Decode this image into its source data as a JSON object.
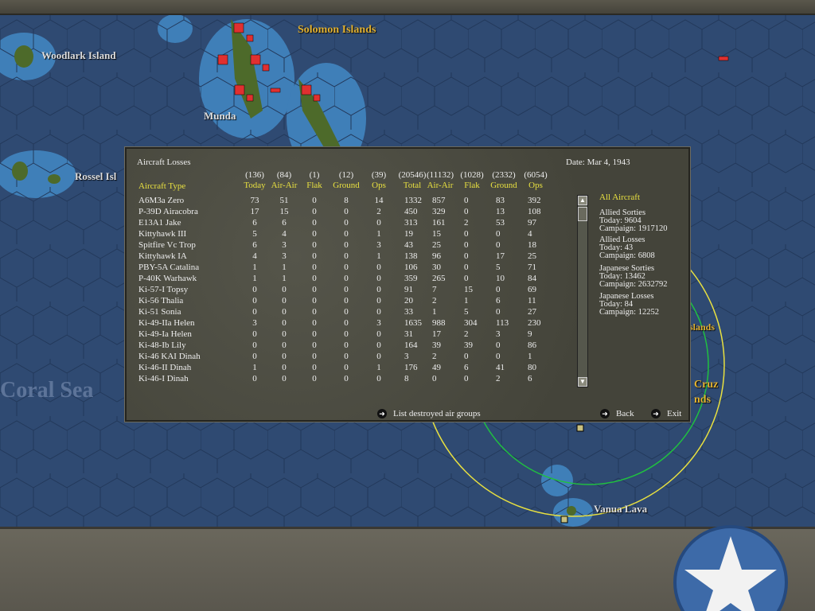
{
  "map": {
    "labels": {
      "woodlark": "Woodlark Island",
      "solomon": "Solomon Islands",
      "munda": "Munda",
      "rossel": "Rossel Isl",
      "coral": "Coral Sea",
      "vanua": "Vanua Lava",
      "cruz": "Cruz",
      "cruz2": "nds",
      "islands": "slands"
    },
    "colors": {
      "ocean": "#2f4a72",
      "shallow": "#3f7fb8",
      "japanese": "#e03030",
      "allied_range": "#e8e040",
      "range2": "#20c040"
    }
  },
  "dialog": {
    "title": "Aircraft Losses",
    "date": "Date: Mar 4, 1943",
    "type_header": "Aircraft Type",
    "columns": [
      {
        "total": "(136)",
        "label": "Today"
      },
      {
        "total": "(84)",
        "label": "Air-Air"
      },
      {
        "total": "(1)",
        "label": "Flak"
      },
      {
        "total": "(12)",
        "label": "Ground"
      },
      {
        "total": "(39)",
        "label": "Ops"
      },
      {
        "total": "(20546)",
        "label": "Total"
      },
      {
        "total": "(11132)",
        "label": "Air-Air"
      },
      {
        "total": "(1028)",
        "label": "Flak"
      },
      {
        "total": "(2332)",
        "label": "Ground"
      },
      {
        "total": "(6054)",
        "label": "Ops"
      }
    ],
    "rows": [
      [
        "A6M3a Zero",
        73,
        51,
        0,
        8,
        14,
        1332,
        857,
        0,
        83,
        392
      ],
      [
        "P-39D Airacobra",
        17,
        15,
        0,
        0,
        2,
        450,
        329,
        0,
        13,
        108
      ],
      [
        "E13A1 Jake",
        6,
        6,
        0,
        0,
        0,
        313,
        161,
        2,
        53,
        97
      ],
      [
        "Kittyhawk III",
        5,
        4,
        0,
        0,
        1,
        19,
        15,
        0,
        0,
        4
      ],
      [
        "Spitfire Vc Trop",
        6,
        3,
        0,
        0,
        3,
        43,
        25,
        0,
        0,
        18
      ],
      [
        "Kittyhawk IA",
        4,
        3,
        0,
        0,
        1,
        138,
        96,
        0,
        17,
        25
      ],
      [
        "PBY-5A Catalina",
        1,
        1,
        0,
        0,
        0,
        106,
        30,
        0,
        5,
        71
      ],
      [
        "P-40K Warhawk",
        1,
        1,
        0,
        0,
        0,
        359,
        265,
        0,
        10,
        84
      ],
      [
        "Ki-57-I Topsy",
        0,
        0,
        0,
        0,
        0,
        91,
        7,
        15,
        0,
        69
      ],
      [
        "Ki-56 Thalia",
        0,
        0,
        0,
        0,
        0,
        20,
        2,
        1,
        6,
        11
      ],
      [
        "Ki-51 Sonia",
        0,
        0,
        0,
        0,
        0,
        33,
        1,
        5,
        0,
        27
      ],
      [
        "Ki-49-IIa Helen",
        3,
        0,
        0,
        0,
        3,
        1635,
        988,
        304,
        113,
        230
      ],
      [
        "Ki-49-Ia Helen",
        0,
        0,
        0,
        0,
        0,
        31,
        17,
        2,
        3,
        9
      ],
      [
        "Ki-48-Ib Lily",
        0,
        0,
        0,
        0,
        0,
        164,
        39,
        39,
        0,
        86
      ],
      [
        "Ki-46 KAI Dinah",
        0,
        0,
        0,
        0,
        0,
        3,
        2,
        0,
        0,
        1
      ],
      [
        "Ki-46-II Dinah",
        1,
        0,
        0,
        0,
        1,
        176,
        49,
        6,
        41,
        80
      ],
      [
        "Ki-46-I Dinah",
        0,
        0,
        0,
        0,
        0,
        8,
        0,
        0,
        2,
        6
      ]
    ],
    "filter": "All Aircraft",
    "stats": {
      "allied_sorties": {
        "title": "Allied Sorties",
        "today": "Today:   9604",
        "campaign": "Campaign: 1917120"
      },
      "allied_losses": {
        "title": "Allied Losses",
        "today": "Today:   43",
        "campaign": "Campaign: 6808"
      },
      "japanese_sorties": {
        "title": "Japanese Sorties",
        "today": "Today:   13462",
        "campaign": "Campaign: 2632792"
      },
      "japanese_losses": {
        "title": "Japanese Losses",
        "today": "Today:   84",
        "campaign": "Campaign: 12252"
      }
    },
    "buttons": {
      "list": "List destroyed air groups",
      "back": "Back",
      "exit": "Exit"
    }
  }
}
